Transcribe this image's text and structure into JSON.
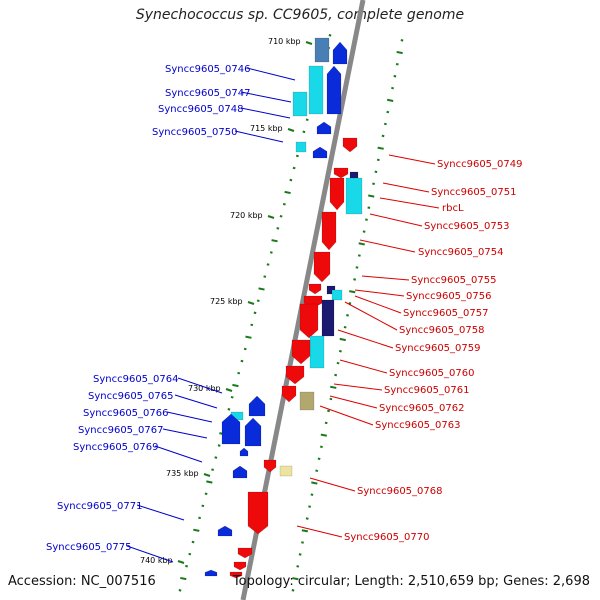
{
  "title": "Synechococcus sp. CC9605, complete genome",
  "footer": {
    "accession": "Accession: NC_007516",
    "topology": "Topology: circular; Length: 2,510,659 bp; Genes: 2,698"
  },
  "colors": {
    "backbone": "#888888",
    "ruler_tick": "#1a7a1a",
    "label_left": "#0000cc",
    "label_right": "#cc0000",
    "leader_left": "#0000cc",
    "leader_right": "#dd0000",
    "gene_blue": "#0a2bd9",
    "gene_red": "#ee0a0a",
    "gene_cyan": "#19d9e8",
    "gene_navy": "#1a1a70",
    "gene_khaki": "#b3a770",
    "gene_pale": "#ece3a0",
    "gene_steel": "#4a7fb5"
  },
  "ruler_labels": [
    "710 kbp",
    "715 kbp",
    "720 kbp",
    "725 kbp",
    "730 kbp",
    "735 kbp",
    "740 kbp"
  ],
  "left_labels": [
    "Syncc9605_0746",
    "Syncc9605_0747",
    "Syncc9605_0748",
    "Syncc9605_0750",
    "Syncc9605_0764",
    "Syncc9605_0765",
    "Syncc9605_0766",
    "Syncc9605_0767",
    "Syncc9605_0769",
    "Syncc9605_0771",
    "Syncc9605_0775"
  ],
  "right_labels": [
    "Syncc9605_0749",
    "Syncc9605_0751",
    "rbcL",
    "Syncc9605_0753",
    "Syncc9605_0754",
    "Syncc9605_0755",
    "Syncc9605_0756",
    "Syncc9605_0757",
    "Syncc9605_0758",
    "Syncc9605_0759",
    "Syncc9605_0760",
    "Syncc9605_0761",
    "Syncc9605_0762",
    "Syncc9605_0763",
    "Syncc9605_0768",
    "Syncc9605_0770"
  ]
}
